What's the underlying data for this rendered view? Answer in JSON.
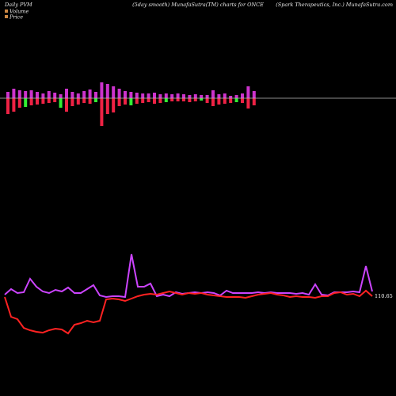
{
  "header": {
    "left": "Daily PVM",
    "center": "(5day smooth) MunafaSutra(TM) charts for ONCE",
    "right": "(Spark Therapeutics, Inc.) MunafaSutra.com"
  },
  "legend": {
    "volume_label": "Volume",
    "price_label": "Price"
  },
  "colors": {
    "background": "#000000",
    "baseline": "#bbbbbb",
    "volume_up": "#cc33cc",
    "volume_down": "#ee2244",
    "volume_spike": "#33ee33",
    "price_line": "#ff2222",
    "smooth_line": "#cc44ff",
    "legend_volume": "#cc8844",
    "legend_price": "#cc8844"
  },
  "chart_data": {
    "type": "line",
    "title": "(5day smooth) MunafaSutra(TM) charts for ONCE",
    "last_value_label": "110.65",
    "bars": {
      "up": [
        8,
        12,
        10,
        9,
        10,
        8,
        6,
        9,
        7,
        5,
        12,
        8,
        6,
        9,
        11,
        8,
        20,
        18,
        15,
        12,
        9,
        8,
        7,
        6,
        6,
        7,
        5,
        6,
        5,
        6,
        5,
        4,
        5,
        4,
        4,
        10,
        5,
        6,
        3,
        4,
        6,
        15,
        9
      ],
      "down": [
        20,
        17,
        12,
        11,
        9,
        8,
        7,
        6,
        5,
        12,
        17,
        10,
        8,
        6,
        7,
        5,
        35,
        20,
        18,
        10,
        8,
        9,
        7,
        6,
        5,
        7,
        6,
        5,
        4,
        4,
        4,
        5,
        4,
        3,
        6,
        10,
        8,
        7,
        6,
        5,
        6,
        13,
        9
      ],
      "spike_index": [
        5,
        13,
        23,
        39,
        57,
        62
      ]
    },
    "series": [
      {
        "values": [
          372,
          365,
          370,
          369,
          352,
          362,
          368,
          370,
          366,
          368,
          363,
          370,
          370,
          365,
          360,
          373,
          375,
          374,
          374,
          375,
          321,
          362,
          362,
          358,
          374,
          372,
          374,
          369,
          371,
          370,
          369,
          370,
          369,
          370,
          373,
          367,
          370,
          370,
          370,
          370,
          369,
          370,
          369,
          370,
          370,
          370,
          371,
          370,
          372,
          359,
          372,
          373,
          369,
          369,
          369,
          368,
          369,
          336,
          368
        ]
      },
      {
        "values": [
          375,
          400,
          403,
          414,
          417,
          419,
          420,
          417,
          415,
          416,
          421,
          410,
          408,
          405,
          407,
          405,
          378,
          377,
          378,
          380,
          377,
          374,
          372,
          371,
          372,
          370,
          368,
          370,
          372,
          370,
          371,
          370,
          372,
          373,
          374,
          375,
          375,
          375,
          376,
          374,
          372,
          371,
          370,
          372,
          373,
          375,
          374,
          375,
          375,
          376,
          374,
          374,
          370,
          369,
          372,
          371,
          374,
          367,
          374
        ]
      }
    ]
  }
}
